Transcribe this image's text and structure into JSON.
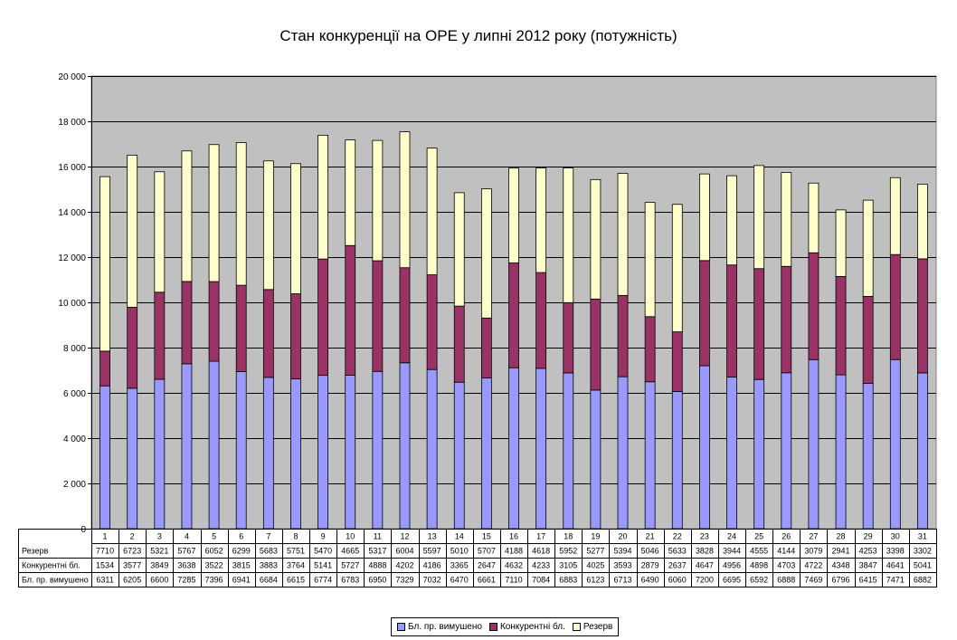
{
  "chart_data": {
    "type": "bar",
    "stacked": true,
    "title": "Стан конкуренції на ОРЕ  у липні 2012 року (потужність)",
    "categories": [
      "1",
      "2",
      "3",
      "4",
      "5",
      "6",
      "7",
      "8",
      "9",
      "10",
      "11",
      "12",
      "13",
      "14",
      "15",
      "16",
      "17",
      "18",
      "19",
      "20",
      "21",
      "22",
      "23",
      "24",
      "25",
      "26",
      "27",
      "28",
      "29",
      "30",
      "31"
    ],
    "series": [
      {
        "name": "Бл. пр. вимушено",
        "color": "#9999ff",
        "values": [
          6311,
          6205,
          6600,
          7285,
          7396,
          6941,
          6684,
          6615,
          6774,
          6783,
          6950,
          7329,
          7032,
          6470,
          6661,
          7110,
          7084,
          6883,
          6123,
          6713,
          6490,
          6060,
          7200,
          6695,
          6592,
          6888,
          7469,
          6796,
          6415,
          7471,
          6882
        ]
      },
      {
        "name": "Конкурентні бл.",
        "color": "#993366",
        "values": [
          1534,
          3577,
          3849,
          3638,
          3522,
          3815,
          3883,
          3764,
          5141,
          5727,
          4888,
          4202,
          4186,
          3365,
          2647,
          4632,
          4233,
          3105,
          4025,
          3593,
          2879,
          2637,
          4647,
          4956,
          4898,
          4703,
          4722,
          4348,
          3847,
          4641,
          5041
        ]
      },
      {
        "name": "Резерв",
        "color": "#ffffcc",
        "values": [
          7710,
          6723,
          5321,
          5767,
          6052,
          6299,
          5683,
          5751,
          5470,
          4665,
          5317,
          6004,
          5597,
          5010,
          5707,
          4188,
          4618,
          5952,
          5277,
          5394,
          5046,
          5633,
          3828,
          3944,
          4555,
          4144,
          3079,
          2941,
          4253,
          3398,
          3302
        ]
      }
    ],
    "table_row_order": [
      2,
      1,
      0
    ],
    "yticks": [
      "0",
      "2 000",
      "4 000",
      "6 000",
      "8 000",
      "10 000",
      "12 000",
      "14 000",
      "16 000",
      "18 000",
      "20 000"
    ],
    "ylim": [
      0,
      20000
    ],
    "grid": true,
    "plot_background": "#c0c0c0",
    "legend_position": "bottom"
  }
}
